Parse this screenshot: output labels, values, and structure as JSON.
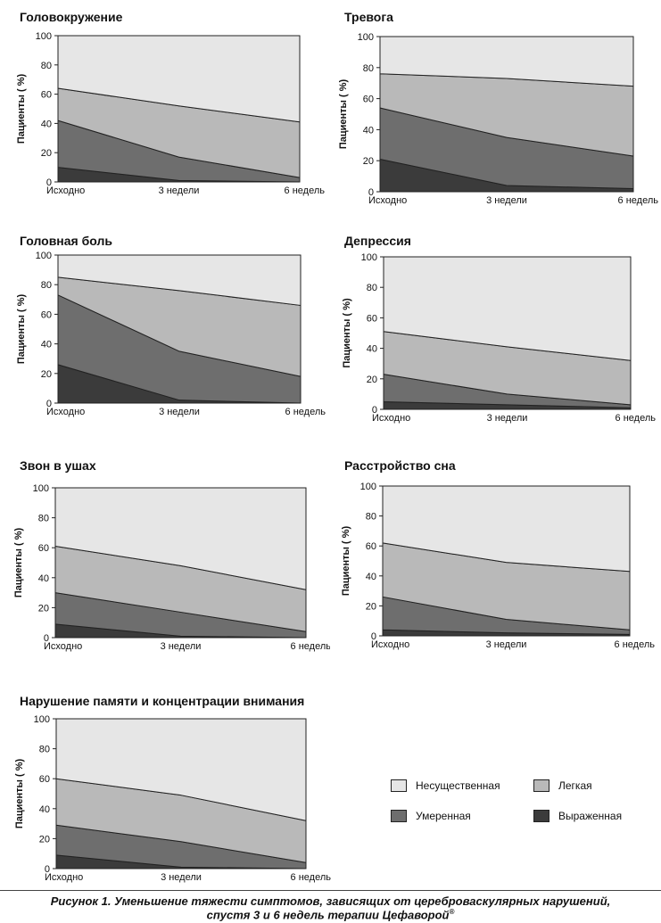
{
  "chart_data": [
    {
      "type": "area",
      "title": "Головокружение",
      "ylabel": "Пациенты ( %)",
      "categories": [
        "Исходно",
        "3 недели",
        "6 недель"
      ],
      "yticks": [
        "0",
        "20",
        "40",
        "60",
        "80",
        "100"
      ],
      "ylim": [
        0,
        100
      ],
      "stacked": true,
      "series": [
        {
          "name": "Выраженная",
          "values": [
            10,
            1,
            0
          ]
        },
        {
          "name": "Умеренная",
          "values": [
            32,
            16,
            3
          ]
        },
        {
          "name": "Легкая",
          "values": [
            22,
            35,
            38
          ]
        },
        {
          "name": "Несущественная",
          "values": [
            36,
            48,
            59
          ]
        }
      ]
    },
    {
      "type": "area",
      "title": "Тревога",
      "ylabel": "Пациенты ( %)",
      "categories": [
        "Исходно",
        "3 недели",
        "6 недель"
      ],
      "yticks": [
        "0",
        "20",
        "40",
        "60",
        "80",
        "100"
      ],
      "ylim": [
        0,
        100
      ],
      "stacked": true,
      "series": [
        {
          "name": "Выраженная",
          "values": [
            21,
            4,
            2
          ]
        },
        {
          "name": "Умеренная",
          "values": [
            33,
            31,
            21
          ]
        },
        {
          "name": "Легкая",
          "values": [
            22,
            38,
            45
          ]
        },
        {
          "name": "Несущественная",
          "values": [
            24,
            27,
            32
          ]
        }
      ]
    },
    {
      "type": "area",
      "title": "Головная боль",
      "ylabel": "Пациенты ( %)",
      "categories": [
        "Исходно",
        "3 недели",
        "6 недель"
      ],
      "yticks": [
        "0",
        "20",
        "40",
        "60",
        "80",
        "100"
      ],
      "ylim": [
        0,
        100
      ],
      "stacked": true,
      "series": [
        {
          "name": "Выраженная",
          "values": [
            26,
            2,
            0
          ]
        },
        {
          "name": "Умеренная",
          "values": [
            47,
            33,
            18
          ]
        },
        {
          "name": "Легкая",
          "values": [
            12,
            41,
            48
          ]
        },
        {
          "name": "Несущественная",
          "values": [
            15,
            24,
            34
          ]
        }
      ]
    },
    {
      "type": "area",
      "title": "Депрессия",
      "ylabel": "Пациенты ( %)",
      "categories": [
        "Исходно",
        "3 недели",
        "6 недель"
      ],
      "yticks": [
        "0",
        "20",
        "40",
        "60",
        "80",
        "100"
      ],
      "ylim": [
        0,
        100
      ],
      "stacked": true,
      "series": [
        {
          "name": "Выраженная",
          "values": [
            5,
            3,
            1
          ]
        },
        {
          "name": "Умеренная",
          "values": [
            18,
            7,
            2
          ]
        },
        {
          "name": "Легкая",
          "values": [
            28,
            31,
            29
          ]
        },
        {
          "name": "Несущественная",
          "values": [
            49,
            59,
            68
          ]
        }
      ]
    },
    {
      "type": "area",
      "title": "Звон в ушах",
      "ylabel": "Пациенты ( %)",
      "categories": [
        "Исходно",
        "3 недели",
        "6 недель"
      ],
      "yticks": [
        "0",
        "20",
        "40",
        "60",
        "80",
        "100"
      ],
      "ylim": [
        0,
        100
      ],
      "stacked": true,
      "series": [
        {
          "name": "Выраженная",
          "values": [
            9,
            1,
            0
          ]
        },
        {
          "name": "Умеренная",
          "values": [
            21,
            16,
            4
          ]
        },
        {
          "name": "Легкая",
          "values": [
            31,
            31,
            28
          ]
        },
        {
          "name": "Несущественная",
          "values": [
            39,
            52,
            68
          ]
        }
      ]
    },
    {
      "type": "area",
      "title": "Расстройство сна",
      "ylabel": "Пациенты ( %)",
      "categories": [
        "Исходно",
        "3 недели",
        "6 недель"
      ],
      "yticks": [
        "0",
        "20",
        "40",
        "60",
        "80",
        "100"
      ],
      "ylim": [
        0,
        100
      ],
      "stacked": true,
      "series": [
        {
          "name": "Выраженная",
          "values": [
            4,
            2,
            1
          ]
        },
        {
          "name": "Умеренная",
          "values": [
            22,
            9,
            3
          ]
        },
        {
          "name": "Легкая",
          "values": [
            36,
            38,
            39
          ]
        },
        {
          "name": "Несущественная",
          "values": [
            38,
            51,
            57
          ]
        }
      ]
    },
    {
      "type": "area",
      "title": "Нарушение памяти и концентрации внимания",
      "ylabel": "Пациенты ( %)",
      "categories": [
        "Исходно",
        "3 недели",
        "6 недель"
      ],
      "yticks": [
        "0",
        "20",
        "40",
        "60",
        "80",
        "100"
      ],
      "ylim": [
        0,
        100
      ],
      "stacked": true,
      "series": [
        {
          "name": "Выраженная",
          "values": [
            9,
            1,
            0
          ]
        },
        {
          "name": "Умеренная",
          "values": [
            20,
            17,
            4
          ]
        },
        {
          "name": "Легкая",
          "values": [
            31,
            31,
            28
          ]
        },
        {
          "name": "Несущественная",
          "values": [
            40,
            51,
            68
          ]
        }
      ]
    }
  ],
  "legend": [
    {
      "label": "Несущественная",
      "color": "#e6e6e6"
    },
    {
      "label": "Легкая",
      "color": "#b9b9b9"
    },
    {
      "label": "Умеренная",
      "color": "#6e6e6e"
    },
    {
      "label": "Выраженная",
      "color": "#3b3b3b"
    }
  ],
  "series_colors": [
    "#3b3b3b",
    "#6e6e6e",
    "#b9b9b9",
    "#e6e6e6"
  ],
  "caption": {
    "line1": "Рисунок 1. Уменьшение тяжести симптомов, зависящих от цереброваскулярных нарушений,",
    "line2": "спустя 3 и 6 недель терапии Цефаворой",
    "mark": "®"
  }
}
